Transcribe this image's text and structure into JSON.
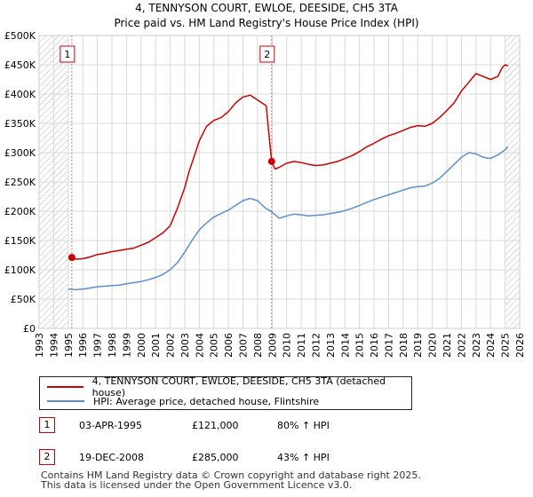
{
  "chart_data": {
    "type": "line",
    "title": "4, TENNYSON COURT, EWLOE, DEESIDE, CH5 3TA",
    "subtitle": "Price paid vs. HM Land Registry's House Price Index (HPI)",
    "xlabel": "",
    "ylabel": "",
    "xlim": [
      1993,
      2026
    ],
    "ylim": [
      0,
      500000
    ],
    "x_ticks": [
      "1993",
      "1994",
      "1995",
      "1996",
      "1997",
      "1998",
      "1999",
      "2000",
      "2001",
      "2002",
      "2003",
      "2004",
      "2005",
      "2006",
      "2007",
      "2008",
      "2009",
      "2010",
      "2011",
      "2012",
      "2013",
      "2014",
      "2015",
      "2016",
      "2017",
      "2018",
      "2019",
      "2020",
      "2021",
      "2022",
      "2023",
      "2024",
      "2025",
      "2026"
    ],
    "y_ticks": [
      {
        "value": 0,
        "label": "£0"
      },
      {
        "value": 50000,
        "label": "£50K"
      },
      {
        "value": 100000,
        "label": "£100K"
      },
      {
        "value": 150000,
        "label": "£150K"
      },
      {
        "value": 200000,
        "label": "£200K"
      },
      {
        "value": 250000,
        "label": "£250K"
      },
      {
        "value": 300000,
        "label": "£300K"
      },
      {
        "value": 350000,
        "label": "£350K"
      },
      {
        "value": 400000,
        "label": "£400K"
      },
      {
        "value": 450000,
        "label": "£450K"
      },
      {
        "value": 500000,
        "label": "£500K"
      }
    ],
    "series": [
      {
        "name": "4, TENNYSON COURT, EWLOE, DEESIDE, CH5 3TA (detached house)",
        "color": "#cc0000",
        "x": [
          1995.25,
          1995.5,
          1996,
          1996.5,
          1997,
          1997.5,
          1998,
          1998.5,
          1999,
          1999.5,
          2000,
          2000.5,
          2001,
          2001.5,
          2002,
          2002.5,
          2003,
          2003.3,
          2003.6,
          2004,
          2004.5,
          2005,
          2005.5,
          2006,
          2006.5,
          2007,
          2007.5,
          2008,
          2008.3,
          2008.6,
          2008.75,
          2008.97,
          2009.2,
          2009.5,
          2010,
          2010.5,
          2011,
          2011.5,
          2012,
          2012.5,
          2013,
          2013.5,
          2014,
          2014.5,
          2015,
          2015.5,
          2016,
          2016.5,
          2017,
          2017.5,
          2018,
          2018.5,
          2019,
          2019.5,
          2020,
          2020.5,
          2021,
          2021.5,
          2022,
          2022.5,
          2023,
          2023.5,
          2024,
          2024.5,
          2024.8,
          2025,
          2025.2
        ],
        "values": [
          121000,
          118000,
          119000,
          122000,
          126000,
          128000,
          131000,
          133000,
          135000,
          137000,
          142000,
          147000,
          155000,
          163000,
          175000,
          205000,
          240000,
          268000,
          290000,
          320000,
          345000,
          355000,
          360000,
          370000,
          385000,
          395000,
          398000,
          390000,
          385000,
          380000,
          340000,
          285000,
          272000,
          275000,
          282000,
          285000,
          283000,
          280000,
          278000,
          279000,
          282000,
          285000,
          290000,
          295000,
          302000,
          310000,
          316000,
          323000,
          329000,
          333000,
          338000,
          343000,
          346000,
          345000,
          350000,
          360000,
          372000,
          385000,
          405000,
          420000,
          435000,
          430000,
          425000,
          430000,
          445000,
          450000,
          448000
        ]
      },
      {
        "name": "HPI: Average price, detached house, Flintshire",
        "color": "#5b8fd0",
        "x": [
          1995,
          1995.5,
          1996,
          1996.5,
          1997,
          1997.5,
          1998,
          1998.5,
          1999,
          1999.5,
          2000,
          2000.5,
          2001,
          2001.5,
          2002,
          2002.5,
          2003,
          2003.5,
          2004,
          2004.5,
          2005,
          2005.5,
          2006,
          2006.5,
          2007,
          2007.5,
          2008,
          2008.5,
          2008.97,
          2009.5,
          2010,
          2010.5,
          2011,
          2011.5,
          2012,
          2012.5,
          2013,
          2013.5,
          2014,
          2014.5,
          2015,
          2015.5,
          2016,
          2016.5,
          2017,
          2017.5,
          2018,
          2018.5,
          2019,
          2019.5,
          2020,
          2020.5,
          2021,
          2021.5,
          2022,
          2022.5,
          2023,
          2023.5,
          2024,
          2024.5,
          2025,
          2025.2
        ],
        "values": [
          67000,
          66000,
          67000,
          69000,
          71000,
          72000,
          73000,
          74000,
          76000,
          78000,
          80000,
          83000,
          87000,
          92000,
          100000,
          112000,
          130000,
          150000,
          168000,
          180000,
          190000,
          196000,
          202000,
          210000,
          218000,
          222000,
          218000,
          206000,
          199000,
          188000,
          192000,
          195000,
          194000,
          192000,
          193000,
          194000,
          196000,
          198000,
          201000,
          205000,
          210000,
          215000,
          220000,
          224000,
          228000,
          232000,
          236000,
          240000,
          242000,
          243000,
          248000,
          256000,
          268000,
          280000,
          292000,
          300000,
          298000,
          292000,
          290000,
          296000,
          305000,
          310000
        ]
      }
    ],
    "annotations": [
      {
        "label": "1",
        "x": 1995.25,
        "value": 121000
      },
      {
        "label": "2",
        "x": 2008.97,
        "value": 285000
      }
    ],
    "hatched_ranges": [
      [
        1993,
        1995.0
      ],
      [
        2025.0,
        2026
      ]
    ],
    "grid": true
  },
  "legend": {
    "items": [
      {
        "label": "4, TENNYSON COURT, EWLOE, DEESIDE, CH5 3TA (detached house)",
        "color": "#cc0000"
      },
      {
        "label": "HPI: Average price, detached house, Flintshire",
        "color": "#5b8fd0"
      }
    ]
  },
  "sales": [
    {
      "num": "1",
      "date": "03-APR-1995",
      "price": "£121,000",
      "hpi": "80% ↑ HPI"
    },
    {
      "num": "2",
      "date": "19-DEC-2008",
      "price": "£285,000",
      "hpi": "43% ↑ HPI"
    }
  ],
  "footer": {
    "line1": "Contains HM Land Registry data © Crown copyright and database right 2025.",
    "line2": "This data is licensed under the Open Government Licence v3.0."
  }
}
